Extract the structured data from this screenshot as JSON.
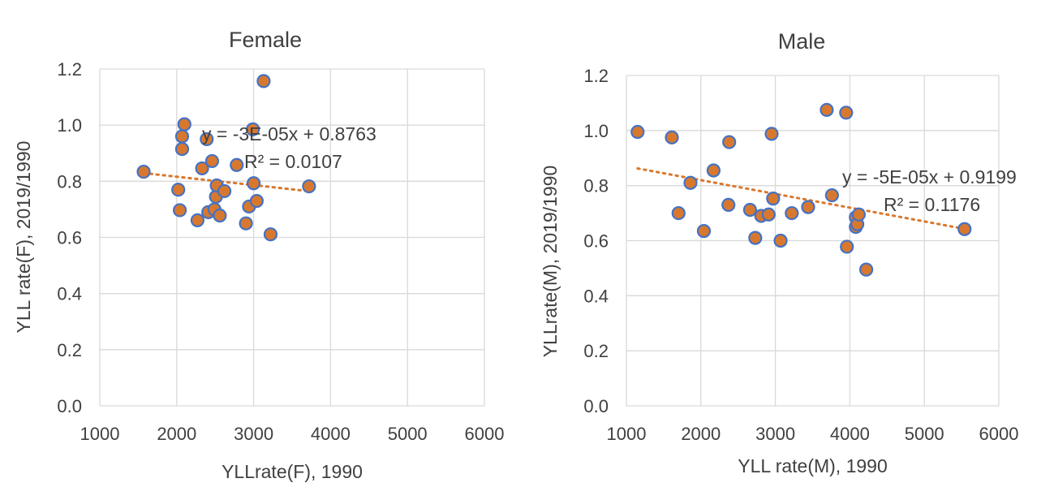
{
  "colors": {
    "marker_fill": "#d8782e",
    "marker_edge": "#4472c4",
    "trendline": "#d8782e",
    "grid": "#d9d9d9",
    "text": "#404040"
  },
  "chart_data": [
    {
      "type": "scatter",
      "title": "Female",
      "xlabel": "YLLrate(F), 1990",
      "ylabel": "YLL rate(F), 2019/1990",
      "xlim": [
        1000,
        6000
      ],
      "ylim": [
        0.0,
        1.2
      ],
      "xticks": [
        1000,
        2000,
        3000,
        4000,
        5000,
        6000
      ],
      "yticks": [
        0.0,
        0.2,
        0.4,
        0.6,
        0.8,
        1.0,
        1.2
      ],
      "grid": true,
      "legend": "none",
      "trendline": {
        "type": "linear",
        "slope": -3e-05,
        "intercept": 0.8763,
        "x_range": [
          1570,
          3720
        ]
      },
      "equation_text": "y = -3E-05x + 0.8763",
      "r2_text": "R² = 0.0107",
      "x": [
        1570,
        2020,
        2040,
        2070,
        2070,
        2100,
        2270,
        2330,
        2390,
        2410,
        2460,
        2490,
        2510,
        2520,
        2560,
        2620,
        2780,
        2900,
        2940,
        2990,
        3000,
        3040,
        3130,
        3220,
        3720
      ],
      "y": [
        0.834,
        0.77,
        0.697,
        0.915,
        0.96,
        1.003,
        0.661,
        0.846,
        0.95,
        0.69,
        0.872,
        0.7,
        0.745,
        0.785,
        0.678,
        0.765,
        0.858,
        0.65,
        0.71,
        0.985,
        0.793,
        0.73,
        1.157,
        0.611,
        0.782
      ]
    },
    {
      "type": "scatter",
      "title": "Male",
      "xlabel": "YLL rate(M), 1990",
      "ylabel": "YLLrate(M), 2019/1990",
      "xlim": [
        1000,
        6000
      ],
      "ylim": [
        0.0,
        1.2
      ],
      "xticks": [
        1000,
        2000,
        3000,
        4000,
        5000,
        6000
      ],
      "yticks": [
        0.0,
        0.2,
        0.4,
        0.6,
        0.8,
        1.0,
        1.2
      ],
      "grid": true,
      "legend": "none",
      "trendline": {
        "type": "linear",
        "slope": -5e-05,
        "intercept": 0.9199,
        "x_range": [
          1150,
          5540
        ]
      },
      "equation_text": "y = -5E-05x + 0.9199",
      "r2_text": "R² = 0.1176",
      "x": [
        1150,
        1610,
        1700,
        1860,
        2040,
        2170,
        2370,
        2380,
        2660,
        2730,
        2810,
        2910,
        2950,
        2970,
        3070,
        3220,
        3440,
        3690,
        3760,
        3950,
        3960,
        4080,
        4080,
        4100,
        4120,
        4220,
        5540
      ],
      "y": [
        0.995,
        0.975,
        0.7,
        0.81,
        0.635,
        0.855,
        0.73,
        0.958,
        0.712,
        0.61,
        0.69,
        0.695,
        0.988,
        0.753,
        0.6,
        0.7,
        0.722,
        1.075,
        0.765,
        1.065,
        0.578,
        0.685,
        0.65,
        0.66,
        0.695,
        0.495,
        0.642
      ]
    }
  ]
}
